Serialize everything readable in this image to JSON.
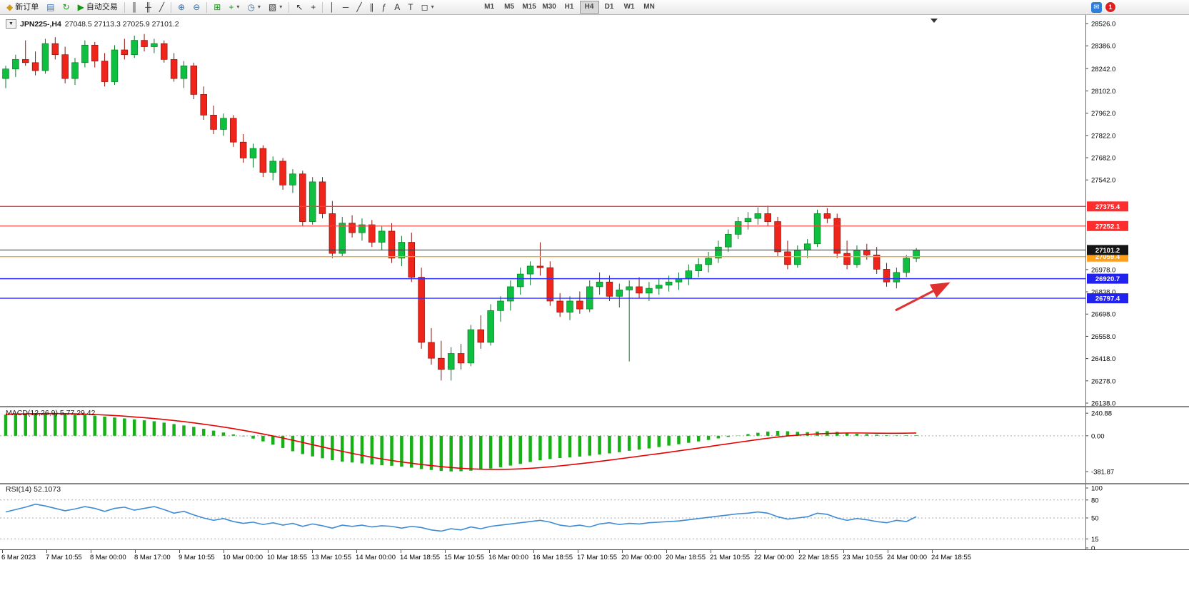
{
  "toolbar": {
    "new_order": "新订单",
    "autotrade": "自动交易",
    "timeframes": [
      "M1",
      "M5",
      "M15",
      "M30",
      "H1",
      "H4",
      "D1",
      "W1",
      "MN"
    ],
    "active_timeframe": "H4",
    "notification_count": "1"
  },
  "icons": {
    "new_order": "◆",
    "profile": "▤",
    "refresh": "↻",
    "play": "▶",
    "bar_chart": "║",
    "candle_chart": "╫",
    "line_chart": "╱",
    "zoom_in": "⊕",
    "zoom_out": "⊖",
    "tile": "⊞",
    "indicators": "+",
    "clock": "◷",
    "templates": "▧",
    "cursor": "↖",
    "crosshair": "+",
    "vline": "│",
    "hline": "─",
    "trendline": "╱",
    "channel": "∥",
    "fibonacci": "ƒ",
    "text": "A",
    "label": "T",
    "shape": "◻",
    "dropdown": "▾",
    "mail": "✉"
  },
  "chart_data": [
    {
      "type": "candlestick",
      "symbol_period": "JPN225-,H4",
      "ohlc": "27048.5 27113.3 27025.9 27101.2",
      "ylim": [
        26138.0,
        28526.0
      ],
      "y_ticks": [
        "28526.0",
        "28386.0",
        "28242.0",
        "28102.0",
        "27962.0",
        "27822.0",
        "27682.0",
        "27542.0",
        "26978.0",
        "26838.0",
        "26698.0",
        "26558.0",
        "26418.0",
        "26278.0",
        "26138.0"
      ],
      "x_labels": [
        "6 Mar 2023",
        "7 Mar 10:55",
        "8 Mar 00:00",
        "8 Mar 17:00",
        "9 Mar 10:55",
        "10 Mar 00:00",
        "10 Mar 18:55",
        "13 Mar 10:55",
        "14 Mar 00:00",
        "14 Mar 18:55",
        "15 Mar 10:55",
        "16 Mar 00:00",
        "16 Mar 18:55",
        "17 Mar 10:55",
        "20 Mar 00:00",
        "20 Mar 18:55",
        "21 Mar 10:55",
        "22 Mar 00:00",
        "22 Mar 18:55",
        "23 Mar 10:55",
        "24 Mar 00:00",
        "24 Mar 18:55"
      ],
      "colors": {
        "up": "#0fbf3f",
        "up_border": "#067a26",
        "down": "#ef241a",
        "down_border": "#8e130c",
        "background": "#ffffff"
      },
      "hlines": [
        {
          "value": 27375.4,
          "color": "#ff3b3b",
          "width": 1.4
        },
        {
          "value": 27252.1,
          "color": "#ff3b3b",
          "width": 1.1
        },
        {
          "value": 27101.2,
          "color": "#333333",
          "width": 1.0
        },
        {
          "value": 27059.4,
          "color": "#ffa726",
          "width": 1.4
        },
        {
          "value": 26920.7,
          "color": "#3030ff",
          "width": 1.4
        },
        {
          "value": 26797.4,
          "color": "#3030ff",
          "width": 1.4
        }
      ],
      "axis_badges": [
        {
          "value": "27375.4",
          "color": "#ff2e2e"
        },
        {
          "value": "27252.1",
          "color": "#ff2e2e"
        },
        {
          "value": "27059.4",
          "color": "#ff9f1a"
        },
        {
          "value": "27101.2",
          "color": "#151515"
        },
        {
          "value": "26920.7",
          "color": "#2222ee"
        },
        {
          "value": "26797.4",
          "color": "#2222ee"
        }
      ],
      "current_price": 27101.2,
      "annotation_arrow": {
        "color": "#e03030",
        "direction": "up-right"
      },
      "candles": [
        [
          28180,
          28260,
          28120,
          28240
        ],
        [
          28240,
          28330,
          28190,
          28300
        ],
        [
          28300,
          28420,
          28260,
          28280
        ],
        [
          28280,
          28350,
          28200,
          28230
        ],
        [
          28230,
          28430,
          28210,
          28400
        ],
        [
          28400,
          28440,
          28300,
          28330
        ],
        [
          28330,
          28380,
          28150,
          28180
        ],
        [
          28180,
          28310,
          28140,
          28280
        ],
        [
          28280,
          28420,
          28250,
          28390
        ],
        [
          28390,
          28410,
          28250,
          28290
        ],
        [
          28290,
          28340,
          28130,
          28160
        ],
        [
          28160,
          28390,
          28140,
          28360
        ],
        [
          28360,
          28430,
          28300,
          28330
        ],
        [
          28330,
          28450,
          28310,
          28420
        ],
        [
          28420,
          28460,
          28350,
          28380
        ],
        [
          28380,
          28430,
          28340,
          28400
        ],
        [
          28400,
          28420,
          28280,
          28300
        ],
        [
          28300,
          28340,
          28160,
          28180
        ],
        [
          28180,
          28290,
          28120,
          28260
        ],
        [
          28260,
          28280,
          28050,
          28080
        ],
        [
          28080,
          28130,
          27920,
          27950
        ],
        [
          27950,
          28010,
          27830,
          27860
        ],
        [
          27860,
          27960,
          27820,
          27930
        ],
        [
          27930,
          27950,
          27750,
          27780
        ],
        [
          27780,
          27830,
          27650,
          27680
        ],
        [
          27680,
          27770,
          27620,
          27740
        ],
        [
          27740,
          27760,
          27560,
          27590
        ],
        [
          27590,
          27690,
          27540,
          27660
        ],
        [
          27660,
          27680,
          27480,
          27510
        ],
        [
          27510,
          27610,
          27460,
          27580
        ],
        [
          27580,
          27600,
          27250,
          27280
        ],
        [
          27280,
          27560,
          27260,
          27530
        ],
        [
          27530,
          27560,
          27300,
          27330
        ],
        [
          27330,
          27410,
          27050,
          27080
        ],
        [
          27080,
          27310,
          27060,
          27270
        ],
        [
          27270,
          27320,
          27180,
          27210
        ],
        [
          27210,
          27300,
          27160,
          27260
        ],
        [
          27260,
          27290,
          27120,
          27150
        ],
        [
          27150,
          27250,
          27100,
          27220
        ],
        [
          27220,
          27270,
          27020,
          27050
        ],
        [
          27050,
          27190,
          27000,
          27150
        ],
        [
          27150,
          27210,
          26900,
          26930
        ],
        [
          26930,
          26990,
          26480,
          26520
        ],
        [
          26520,
          26610,
          26380,
          26420
        ],
        [
          26420,
          26530,
          26280,
          26350
        ],
        [
          26350,
          26490,
          26280,
          26450
        ],
        [
          26450,
          26510,
          26350,
          26390
        ],
        [
          26390,
          26630,
          26370,
          26600
        ],
        [
          26600,
          26690,
          26480,
          26520
        ],
        [
          26520,
          26760,
          26500,
          26720
        ],
        [
          26720,
          26810,
          26650,
          26780
        ],
        [
          26780,
          26910,
          26720,
          26870
        ],
        [
          26870,
          26990,
          26820,
          26950
        ],
        [
          26950,
          27030,
          26880,
          27000
        ],
        [
          27000,
          27150,
          26940,
          26990
        ],
        [
          26990,
          27030,
          26750,
          26780
        ],
        [
          26780,
          26830,
          26680,
          26710
        ],
        [
          26710,
          26810,
          26660,
          26780
        ],
        [
          26780,
          26840,
          26700,
          26730
        ],
        [
          26730,
          26910,
          26710,
          26870
        ],
        [
          26870,
          26960,
          26820,
          26900
        ],
        [
          26900,
          26940,
          26780,
          26810
        ],
        [
          26810,
          26890,
          26740,
          26850
        ],
        [
          26850,
          26910,
          26400,
          26870
        ],
        [
          26870,
          26930,
          26800,
          26830
        ],
        [
          26830,
          26900,
          26780,
          26860
        ],
        [
          26860,
          26920,
          26820,
          26880
        ],
        [
          26880,
          26940,
          26840,
          26900
        ],
        [
          26900,
          26960,
          26850,
          26920
        ],
        [
          26920,
          27010,
          26880,
          26970
        ],
        [
          26970,
          27050,
          26930,
          27010
        ],
        [
          27010,
          27090,
          26960,
          27050
        ],
        [
          27050,
          27160,
          27020,
          27120
        ],
        [
          27120,
          27230,
          27090,
          27200
        ],
        [
          27200,
          27310,
          27170,
          27280
        ],
        [
          27280,
          27340,
          27230,
          27300
        ],
        [
          27300,
          27370,
          27260,
          27330
        ],
        [
          27330,
          27380,
          27250,
          27280
        ],
        [
          27280,
          27310,
          27060,
          27090
        ],
        [
          27090,
          27160,
          26980,
          27010
        ],
        [
          27010,
          27130,
          26990,
          27100
        ],
        [
          27100,
          27170,
          27050,
          27140
        ],
        [
          27140,
          27355,
          27120,
          27330
        ],
        [
          27330,
          27365,
          27270,
          27300
        ],
        [
          27300,
          27330,
          27050,
          27080
        ],
        [
          27080,
          27160,
          26980,
          27010
        ],
        [
          27010,
          27130,
          26990,
          27100
        ],
        [
          27100,
          27140,
          27040,
          27070
        ],
        [
          27070,
          27120,
          26950,
          26980
        ],
        [
          26980,
          27020,
          26870,
          26900
        ],
        [
          26900,
          26990,
          26860,
          26960
        ],
        [
          26960,
          27070,
          26930,
          27050
        ],
        [
          27048.5,
          27113.3,
          27025.9,
          27101.2
        ]
      ]
    },
    {
      "type": "bar",
      "label": "MACD(12,26,9) 5.77 29.42",
      "ylim": [
        -420,
        265
      ],
      "y_ticks": [
        "240.88",
        "0.00",
        "-381.87"
      ],
      "colors": {
        "histogram": "#17b117",
        "signal": "#e60000"
      },
      "histogram": [
        225,
        230,
        235,
        238,
        240,
        238,
        232,
        228,
        222,
        215,
        205,
        195,
        185,
        175,
        165,
        155,
        140,
        125,
        110,
        95,
        75,
        55,
        35,
        15,
        -5,
        -30,
        -60,
        -95,
        -130,
        -165,
        -195,
        -220,
        -240,
        -260,
        -275,
        -285,
        -295,
        -305,
        -315,
        -320,
        -330,
        -340,
        -355,
        -365,
        -375,
        -380,
        -378,
        -372,
        -362,
        -350,
        -335,
        -318,
        -300,
        -280,
        -262,
        -248,
        -238,
        -230,
        -222,
        -212,
        -200,
        -188,
        -175,
        -160,
        -148,
        -135,
        -120,
        -105,
        -90,
        -75,
        -60,
        -45,
        -28,
        -12,
        2,
        18,
        32,
        45,
        52,
        48,
        42,
        38,
        45,
        50,
        42,
        30,
        22,
        18,
        12,
        6,
        4,
        5,
        5.77
      ],
      "signal": [
        230,
        232,
        234,
        236,
        237,
        237,
        236,
        234,
        231,
        227,
        222,
        216,
        209,
        201,
        193,
        184,
        174,
        163,
        151,
        138,
        124,
        109,
        93,
        76,
        58,
        39,
        19,
        -2,
        -24,
        -47,
        -71,
        -95,
        -119,
        -143,
        -166,
        -188,
        -209,
        -229,
        -247,
        -264,
        -279,
        -293,
        -306,
        -318,
        -329,
        -339,
        -347,
        -353,
        -357,
        -359,
        -359,
        -357,
        -353,
        -347,
        -340,
        -331,
        -321,
        -310,
        -298,
        -286,
        -273,
        -260,
        -246,
        -232,
        -218,
        -204,
        -190,
        -176,
        -161,
        -146,
        -131,
        -116,
        -100,
        -85,
        -70,
        -55,
        -40,
        -26,
        -13,
        -2,
        7,
        14,
        20,
        25,
        28,
        30,
        30,
        29,
        28,
        27,
        27,
        28,
        29.42
      ]
    },
    {
      "type": "line",
      "label": "RSI(14) 52.1073",
      "ylim": [
        0,
        100
      ],
      "y_ticks": [
        "100",
        "80",
        "50",
        "15",
        "0"
      ],
      "dashed_levels": [
        80,
        50,
        15
      ],
      "color": "#3d8bd4",
      "values": [
        60,
        64,
        68,
        73,
        70,
        66,
        62,
        65,
        69,
        66,
        61,
        66,
        68,
        63,
        66,
        69,
        64,
        58,
        61,
        55,
        50,
        46,
        49,
        44,
        41,
        43,
        39,
        42,
        38,
        41,
        36,
        40,
        37,
        33,
        38,
        36,
        38,
        35,
        37,
        36,
        33,
        36,
        34,
        30,
        28,
        32,
        30,
        35,
        32,
        36,
        38,
        40,
        42,
        44,
        46,
        43,
        38,
        36,
        38,
        35,
        40,
        42,
        39,
        41,
        40,
        42,
        43,
        44,
        45,
        47,
        49,
        51,
        53,
        55,
        57,
        58,
        60,
        58,
        52,
        48,
        50,
        52,
        58,
        56,
        50,
        46,
        49,
        47,
        44,
        42,
        46,
        44,
        52.11
      ]
    }
  ]
}
